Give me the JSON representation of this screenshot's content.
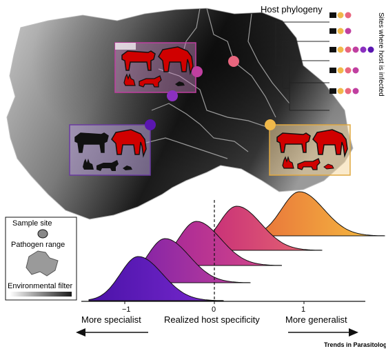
{
  "phylogeny": {
    "title": "Host phylogeny",
    "side_label": "Sites where host is infected",
    "hosts": [
      {
        "name": "mouse-icon",
        "sites": [
          "#f0b84a",
          "#e8667e"
        ]
      },
      {
        "name": "rabbit-icon",
        "sites": [
          "#f0b84a",
          "#c03fa0"
        ]
      },
      {
        "name": "elephant-icon",
        "sites": [
          "#f0b84a",
          "#e8667e",
          "#c03fa0",
          "#8b30c0",
          "#5a16b0"
        ]
      },
      {
        "name": "cow-icon",
        "sites": [
          "#f0b84a",
          "#e8667e",
          "#c03fa0"
        ]
      },
      {
        "name": "raccoon-icon",
        "sites": [
          "#f0b84a",
          "#e8667e",
          "#c03fa0"
        ]
      }
    ]
  },
  "sites": {
    "colors": [
      "#5a16b0",
      "#8b30c0",
      "#c03fa0",
      "#e8667e",
      "#f0b84a"
    ]
  },
  "legend": {
    "sample_site": "Sample site",
    "pathogen_range": "Pathogen range",
    "environmental_filter": "Environmental filter"
  },
  "axis": {
    "label": "Realized host specificity",
    "ticks": [
      {
        "value": "−1",
        "num": -1
      },
      {
        "value": "0",
        "num": 0
      },
      {
        "value": "1",
        "num": 1
      }
    ],
    "left_label": "More specialist",
    "right_label": "More generalist"
  },
  "distributions": {
    "colors_left": [
      "#4a12a8",
      "#7a1ea8",
      "#a0239a",
      "#c2257a",
      "#e8703a"
    ],
    "colors_right": [
      "#7a2ad0",
      "#c0409a",
      "#d84a88",
      "#e86a70",
      "#f6c040"
    ],
    "peaks": [
      -0.85,
      -0.55,
      -0.2,
      0.25,
      0.95
    ]
  },
  "branding": {
    "journal": "Trends in Parasitology"
  }
}
